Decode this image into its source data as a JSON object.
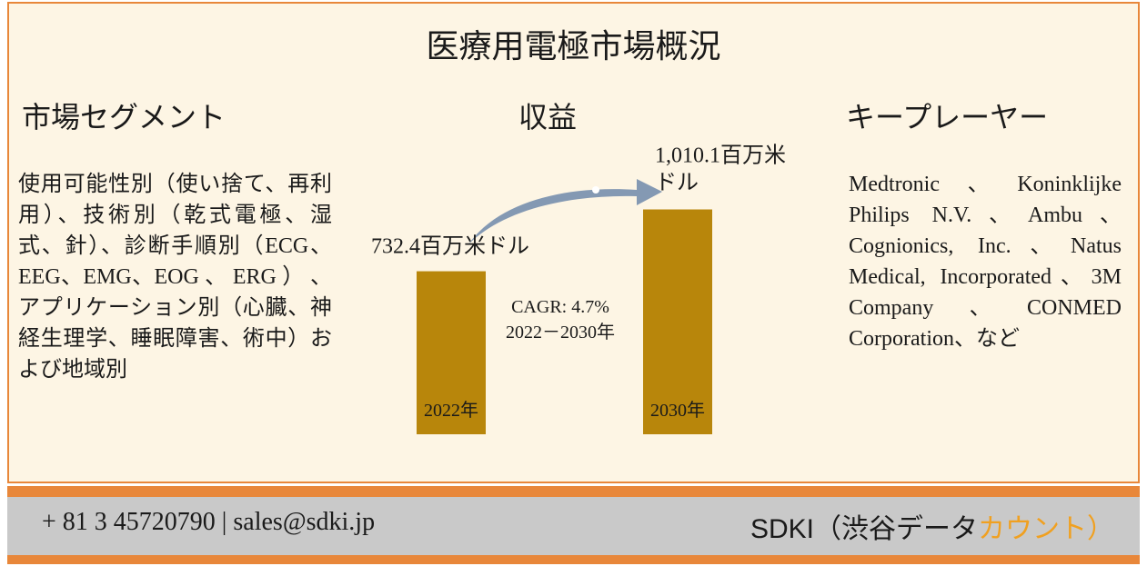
{
  "header": {
    "title": "医療用電極市場概況"
  },
  "segments": {
    "title": "市場セグメント",
    "text": "使用可能性別（使い捨て、再利用）、技術別（乾式電極、湿式、針）、診断手順別（ECG、EEG、EMG、EOG 、 ERG ） 、 アプリケーション別（心臓、神経生理学、睡眠障害、術中）および地域別"
  },
  "revenue": {
    "title": "収益",
    "bars": [
      {
        "label": "2022年",
        "value": 732.4,
        "value_label": "732.4百万米ドル"
      },
      {
        "label": "2030年",
        "value": 1010.1,
        "value_label": "1,010.1百万米ドル"
      }
    ],
    "cagr": [
      "CAGR: 4.7%",
      "2022－2030年"
    ]
  },
  "players": {
    "title": "キープレーヤー",
    "text": "Medtronic、Koninklijke Philips N.V.、Ambu、Cognionics, Inc.、Natus Medical, Incorporated、3M Company、CONMED Corporation、など"
  },
  "footer": {
    "contact": "+ 81 3 45720790 | sales@sdki.jp",
    "brand": "SDKI（渋谷データ",
    "brand_accent": "カウント）"
  }
}
